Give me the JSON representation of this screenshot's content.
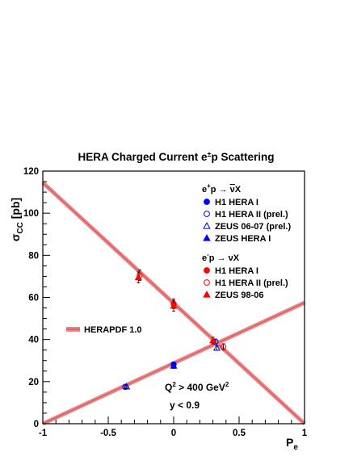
{
  "chart_data": {
    "type": "scatter",
    "title": "HERA Charged Current e±p Scattering",
    "title_parts": {
      "main": "HERA Charged Current e",
      "sup": "±",
      "tail": "p Scattering"
    },
    "xlabel": "P_e",
    "xlabel_parts": {
      "main": "P",
      "sub": "e"
    },
    "ylabel": "σ_CC [pb]",
    "ylabel_parts": {
      "main": "σ",
      "sub": "CC",
      "tail": " [pb]"
    },
    "xlim": [
      -1,
      1
    ],
    "ylim": [
      0,
      120
    ],
    "x_ticks": [
      {
        "value": -1,
        "label": "-1"
      },
      {
        "value": -0.5,
        "label": "-0.5"
      },
      {
        "value": 0,
        "label": "0"
      },
      {
        "value": 0.5,
        "label": "0.5"
      },
      {
        "value": 1,
        "label": "1"
      }
    ],
    "y_ticks": [
      {
        "value": 0,
        "label": "0"
      },
      {
        "value": 20,
        "label": "20"
      },
      {
        "value": 40,
        "label": "40"
      },
      {
        "value": 60,
        "label": "60"
      },
      {
        "value": 80,
        "label": "80"
      },
      {
        "value": 100,
        "label": "100"
      },
      {
        "value": 120,
        "label": "120"
      }
    ],
    "grid": false,
    "fit": {
      "name": "HERAPDF 1.0",
      "color": "#e8888a",
      "line_color": "#d94f4f",
      "lines": [
        {
          "x": [
            -1,
            1
          ],
          "y": [
            114.5,
            0
          ]
        },
        {
          "x": [
            -1,
            1
          ],
          "y": [
            0,
            57.5
          ]
        }
      ]
    },
    "groups": [
      {
        "heading": "e⁺p → νX",
        "heading_parts": {
          "lead": "e",
          "sup": "+",
          "mid": "p → ",
          "over": "ν",
          "tail": "X"
        },
        "color": "#0000ff",
        "series": [
          {
            "name": "H1 HERA I",
            "marker": "filled-circle",
            "points": [
              {
                "x": 0,
                "y": 28.2,
                "err": 1.0
              }
            ]
          },
          {
            "name": "H1 HERA II (prel.)",
            "marker": "open-circle",
            "points": [
              {
                "x": -0.37,
                "y": 17.5,
                "err": 0.8
              },
              {
                "x": 0.32,
                "y": 39.0,
                "err": 1.2
              }
            ]
          },
          {
            "name": "ZEUS 06-07 (prel.)",
            "marker": "open-triangle",
            "points": [
              {
                "x": -0.36,
                "y": 17.6,
                "err": 0.8
              },
              {
                "x": 0.33,
                "y": 36.0,
                "err": 1.0
              }
            ]
          },
          {
            "name": "ZEUS HERA I",
            "marker": "filled-triangle",
            "points": [
              {
                "x": 0,
                "y": 27.5,
                "err": 1.2
              }
            ]
          }
        ]
      },
      {
        "heading": "e⁻p → νX",
        "heading_parts": {
          "lead": "e",
          "sup": "-",
          "mid": "p → ",
          "over": "",
          "tail": "νX"
        },
        "color": "#ff0000",
        "series": [
          {
            "name": "H1 HERA I",
            "marker": "filled-circle",
            "points": [
              {
                "x": 0,
                "y": 57.0,
                "err": 2.3
              }
            ]
          },
          {
            "name": "H1 HERA II (prel.)",
            "marker": "open-circle",
            "points": [
              {
                "x": -0.26,
                "y": 70.5,
                "err": 2.5
              },
              {
                "x": 0.38,
                "y": 36.5,
                "err": 1.5
              }
            ]
          },
          {
            "name": "ZEUS 98-06",
            "marker": "filled-triangle",
            "points": [
              {
                "x": -0.27,
                "y": 69.5,
                "err": 2.6
              },
              {
                "x": 0.3,
                "y": 39.5,
                "err": 1.6
              },
              {
                "x": 0,
                "y": 56.0,
                "err": 2.6
              }
            ]
          }
        ]
      }
    ],
    "annotations": [
      {
        "text": "Q² > 400 GeV²",
        "parts": {
          "a": "Q",
          "sup1": "2",
          "b": " > 400 GeV",
          "sup2": "2"
        }
      },
      {
        "text": "y < 0.9"
      }
    ]
  }
}
